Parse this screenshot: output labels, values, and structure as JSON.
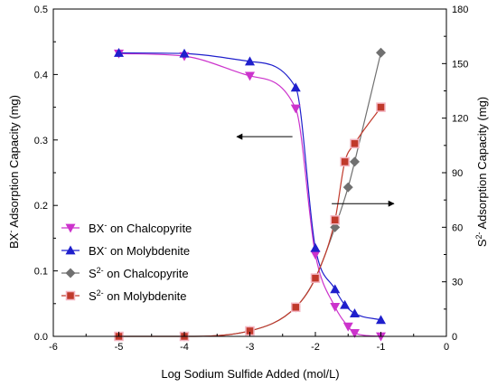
{
  "chart_data": {
    "type": "scatter",
    "xlabel": "Log Sodium Sulfide Added (mol/L)",
    "ylabel_left_prefix": "BX",
    "ylabel_left_sup": "-",
    "ylabel_left_suffix": " Adsorption Capacity (mg)",
    "ylabel_right_prefix": "S",
    "ylabel_right_sup": "2-",
    "ylabel_right_suffix": " Adsorption Capacity (mg)",
    "xlim": [
      -6,
      0
    ],
    "ylim_left": [
      0,
      0.5
    ],
    "ylim_right": [
      0,
      180
    ],
    "x_ticks": [
      -6,
      -5,
      -4,
      -3,
      -2,
      -1,
      0
    ],
    "y_left_ticks": [
      0.0,
      0.1,
      0.2,
      0.3,
      0.4,
      0.5
    ],
    "y_right_ticks": [
      0,
      30,
      60,
      90,
      120,
      150,
      180
    ],
    "legend_position": "lower-left",
    "series": [
      {
        "name_prefix": "BX",
        "name_sup": "-",
        "name_suffix": " on Chalcopyrite",
        "axis": "left",
        "marker": "triangle-down",
        "color": "#cc33cc",
        "fit_color": "#cc33cc",
        "x": [
          -5,
          -4,
          -3,
          -2.3,
          -2,
          -1.7,
          -1.5,
          -1.4,
          -1
        ],
        "y": [
          0.432,
          0.428,
          0.398,
          0.348,
          0.125,
          0.045,
          0.015,
          0.005,
          0.0
        ]
      },
      {
        "name_prefix": "BX",
        "name_sup": "-",
        "name_suffix": " on Molybdenite",
        "axis": "left",
        "marker": "triangle-up",
        "color": "#1f1fcc",
        "fit_color": "#1f1fcc",
        "x": [
          -5,
          -4,
          -3,
          -2.3,
          -2,
          -1.7,
          -1.55,
          -1.4,
          -1
        ],
        "y": [
          0.433,
          0.432,
          0.42,
          0.38,
          0.135,
          0.072,
          0.048,
          0.035,
          0.025
        ]
      },
      {
        "name_prefix": "S",
        "name_sup": "2-",
        "name_suffix": " on Chalcopyrite",
        "axis": "right",
        "marker": "diamond",
        "color": "#707070",
        "fit_color": "#707070",
        "x": [
          -5,
          -4,
          -3,
          -2.3,
          -2,
          -1.7,
          -1.5,
          -1.4,
          -1
        ],
        "y": [
          0,
          0,
          3,
          16,
          32,
          60,
          82,
          96,
          156
        ]
      },
      {
        "name_prefix": "S",
        "name_sup": "2-",
        "name_suffix": " on Molybdenite",
        "axis": "right",
        "marker": "square",
        "color": "#c0392b",
        "fit_color": "#c0392b",
        "x": [
          -5,
          -4,
          -3,
          -2.3,
          -2,
          -1.7,
          -1.55,
          -1.4,
          -1
        ],
        "y": [
          0,
          0,
          3,
          16,
          32,
          64,
          96,
          106,
          126
        ]
      }
    ],
    "annotations": [
      {
        "type": "arrow",
        "direction": "left",
        "points_to_axis": "left"
      },
      {
        "type": "arrow",
        "direction": "right",
        "points_to_axis": "right"
      }
    ]
  }
}
